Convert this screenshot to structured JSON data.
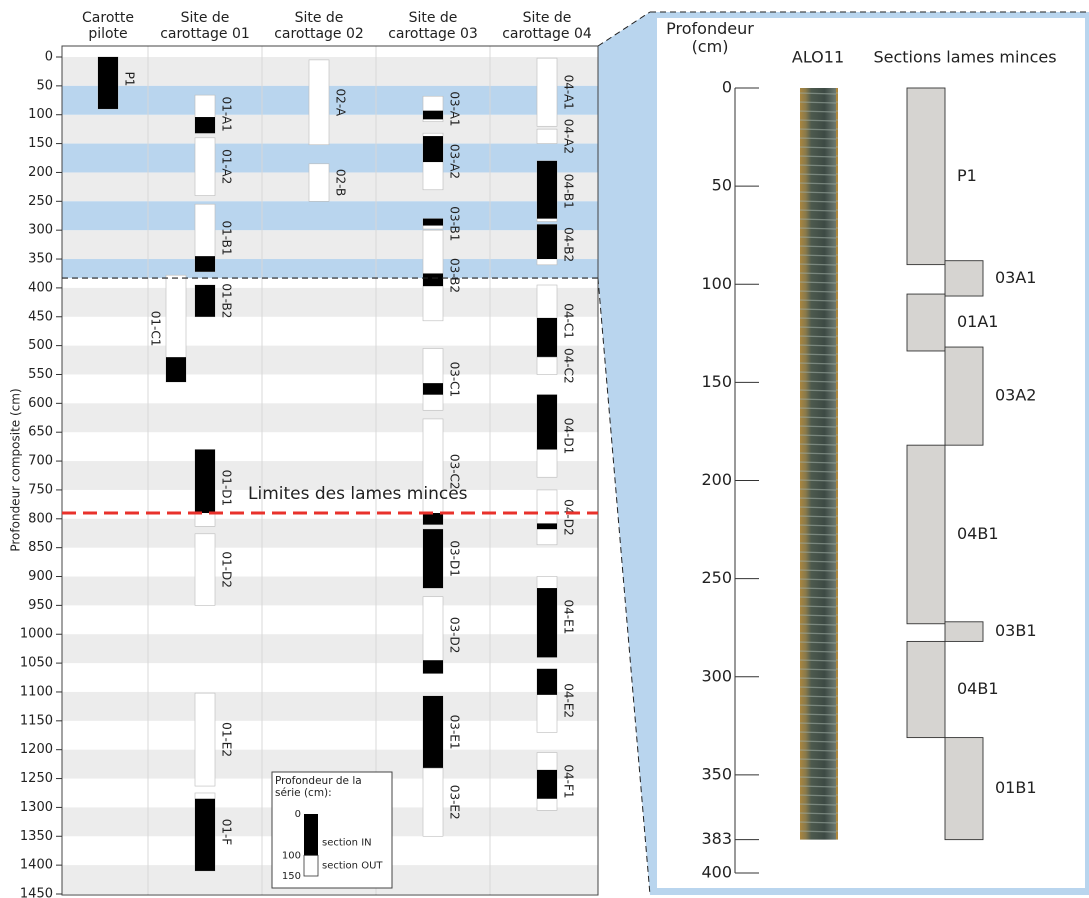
{
  "chart_data": [
    {
      "type": "core-sections",
      "ylabel": "Profondeur composite (cm)",
      "ylim": [
        0,
        1450
      ],
      "yticks": [
        0,
        50,
        100,
        150,
        200,
        250,
        300,
        350,
        400,
        450,
        500,
        550,
        600,
        650,
        700,
        750,
        800,
        850,
        900,
        950,
        1000,
        1050,
        1100,
        1150,
        1200,
        1250,
        1300,
        1350,
        1400,
        1450
      ],
      "inverted": true,
      "highlight_bands": [
        [
          50,
          100
        ],
        [
          150,
          200
        ],
        [
          250,
          300
        ],
        [
          350,
          383
        ]
      ],
      "highlight_color": "#b9d5ee",
      "zoom_depth": 383,
      "limit": {
        "value": 790,
        "label": "Limites des lames minces",
        "color": "#e8312b"
      },
      "columns": [
        {
          "name": "Carotte pilote",
          "sections": [
            {
              "label": "P1",
              "top": 0,
              "bottom": 90,
              "in": [
                0,
                90
              ]
            }
          ]
        },
        {
          "name": "Site de carottage 01",
          "sections": [
            {
              "label": "01-A1",
              "top": 66,
              "bottom": 132,
              "in": [
                104,
                132
              ]
            },
            {
              "label": "01-A2",
              "top": 140,
              "bottom": 240,
              "in": null
            },
            {
              "label": "01-B1",
              "top": 255,
              "bottom": 372,
              "in": [
                345,
                372
              ]
            },
            {
              "label": "01-B2",
              "top": 395,
              "bottom": 450,
              "in": [
                395,
                450
              ]
            },
            {
              "label": "01-C1",
              "top": 378,
              "bottom": 563,
              "in": [
                520,
                563
              ]
            },
            {
              "label": "01-D1",
              "top": 680,
              "bottom": 813,
              "in": [
                680,
                790
              ]
            },
            {
              "label": "01-D2",
              "top": 826,
              "bottom": 950,
              "in": null
            },
            {
              "label": "01-E2",
              "top": 1102,
              "bottom": 1263,
              "in": null
            },
            {
              "label": "01-F",
              "top": 1275,
              "bottom": 1410,
              "in": [
                1285,
                1410
              ]
            }
          ]
        },
        {
          "name": "Site de carottage 02",
          "sections": [
            {
              "label": "02-A",
              "top": 5,
              "bottom": 152,
              "in": null
            },
            {
              "label": "02-B",
              "top": 185,
              "bottom": 250,
              "in": null
            }
          ]
        },
        {
          "name": "Site de carottage 03",
          "sections": [
            {
              "label": "03-A1",
              "top": 68,
              "bottom": 112,
              "in": [
                93,
                108
              ]
            },
            {
              "label": "03-A2",
              "top": 132,
              "bottom": 230,
              "in": [
                137,
                182
              ]
            },
            {
              "label": "03-B1",
              "top": 280,
              "bottom": 298,
              "in": [
                280,
                292
              ]
            },
            {
              "label": "03-B2",
              "top": 300,
              "bottom": 457,
              "in": [
                375,
                397
              ]
            },
            {
              "label": "03-C1",
              "top": 505,
              "bottom": 612,
              "in": [
                565,
                585
              ]
            },
            {
              "label": "03-C2",
              "top": 627,
              "bottom": 810,
              "in": [
                790,
                810
              ]
            },
            {
              "label": "03-D1",
              "top": 818,
              "bottom": 920,
              "in": [
                818,
                920
              ]
            },
            {
              "label": "03-D2",
              "top": 935,
              "bottom": 1068,
              "in": [
                1045,
                1068
              ]
            },
            {
              "label": "03-E1",
              "top": 1107,
              "bottom": 1232,
              "in": [
                1107,
                1232
              ]
            },
            {
              "label": "03-E2",
              "top": 1232,
              "bottom": 1350,
              "in": null
            }
          ]
        },
        {
          "name": "Site de carottage 04",
          "sections": [
            {
              "label": "04-A1",
              "top": 2,
              "bottom": 120,
              "in": null
            },
            {
              "label": "04-A2",
              "top": 125,
              "bottom": 150,
              "in": null
            },
            {
              "label": "04-B1",
              "top": 180,
              "bottom": 285,
              "in": [
                180,
                280
              ]
            },
            {
              "label": "04-B2",
              "top": 290,
              "bottom": 360,
              "in": [
                290,
                350
              ]
            },
            {
              "label": "04-C1",
              "top": 395,
              "bottom": 520,
              "in": [
                452,
                520
              ]
            },
            {
              "label": "04-C2",
              "top": 520,
              "bottom": 550,
              "in": null
            },
            {
              "label": "04-D1",
              "top": 585,
              "bottom": 728,
              "in": [
                585,
                680
              ]
            },
            {
              "label": "04-D2",
              "top": 750,
              "bottom": 845,
              "in": [
                808,
                818
              ]
            },
            {
              "label": "04-E1",
              "top": 900,
              "bottom": 1040,
              "in": [
                920,
                1040
              ]
            },
            {
              "label": "04-E2",
              "top": 1060,
              "bottom": 1170,
              "in": [
                1060,
                1105
              ]
            },
            {
              "label": "04-F1",
              "top": 1205,
              "bottom": 1305,
              "in": [
                1235,
                1285
              ]
            }
          ]
        }
      ],
      "legend": {
        "title": "Profondeur de la série (cm):",
        "ticks": [
          0,
          100,
          150
        ],
        "in_label": "section IN",
        "out_label": "section OUT"
      }
    },
    {
      "type": "core-log",
      "ylabel": "Profondeur (cm)",
      "ylim": [
        0,
        400
      ],
      "yticks": [
        0,
        50,
        100,
        150,
        200,
        250,
        300,
        350,
        383,
        400
      ],
      "inverted": true,
      "core": {
        "label": "ALO11",
        "top": 0,
        "bottom": 383
      },
      "sections_title": "Sections lames minces",
      "sections": [
        {
          "label": "P1",
          "top": 0,
          "bottom": 90
        },
        {
          "label": "03A1",
          "top": 88,
          "bottom": 106
        },
        {
          "label": "01A1",
          "top": 105,
          "bottom": 134
        },
        {
          "label": "03A2",
          "top": 132,
          "bottom": 182
        },
        {
          "label": "04B1",
          "top": 182,
          "bottom": 273
        },
        {
          "label": "03B1",
          "top": 272,
          "bottom": 282
        },
        {
          "label": "04B1",
          "top": 282,
          "bottom": 331
        },
        {
          "label": "01B1",
          "top": 331,
          "bottom": 383
        }
      ]
    }
  ]
}
